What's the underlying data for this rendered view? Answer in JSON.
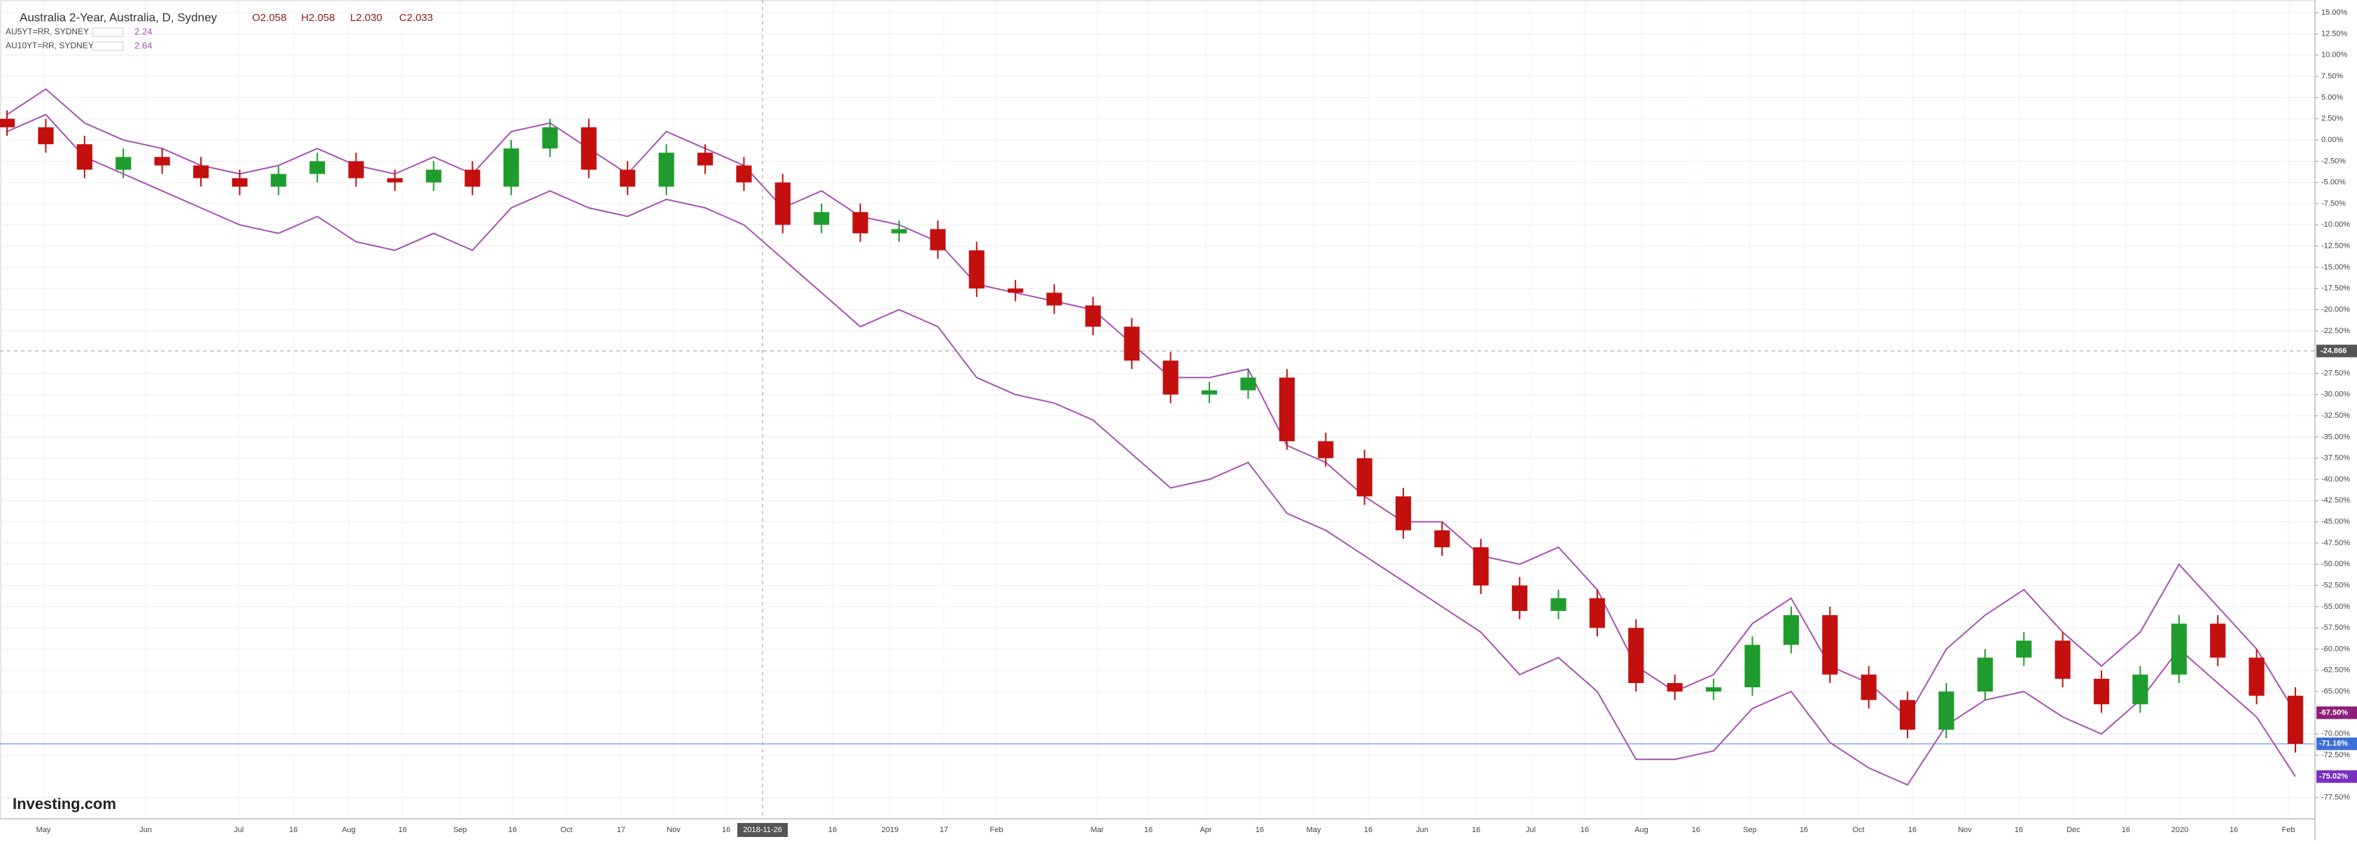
{
  "chart_data": {
    "type": "candlestick",
    "title": "Australia 2-Year, Australia, D, Sydney",
    "ohlc_readout": [
      "O2.058",
      "H2.058",
      "L2.030",
      "C2.033"
    ],
    "open": [
      2.5,
      1.5,
      -0.5,
      -3.5,
      -2.0,
      -3.0,
      -4.5,
      -5.5,
      -4.0,
      -2.5,
      -4.5,
      -5.0,
      -3.5,
      -5.5,
      -1.0,
      1.5,
      -3.5,
      -5.5,
      -1.5,
      -3.0,
      -5.0,
      -10.0,
      -8.5,
      -11.0,
      -10.5,
      -13.0,
      -17.5,
      -18.0,
      -19.5,
      -22.0,
      -26.0,
      -30.0,
      -29.5,
      -28.0,
      -35.5,
      -37.5,
      -42.0,
      -46.0,
      -48.0,
      -52.5,
      -55.5,
      -54.0,
      -57.5,
      -64.0,
      -65.0,
      -64.5,
      -59.5,
      -56.0,
      -63.0,
      -66.0,
      -69.5,
      -65.0,
      -61.0,
      -59.0,
      -63.5,
      -66.5,
      -63.0,
      -57.0,
      -61.0,
      -65.5
    ],
    "high": [
      3.5,
      2.5,
      0.5,
      -1.0,
      -1.0,
      -2.0,
      -3.5,
      -3.0,
      -1.5,
      -1.5,
      -3.5,
      -2.5,
      -2.5,
      0.0,
      2.5,
      2.5,
      -2.5,
      -0.5,
      -0.5,
      -2.0,
      -4.0,
      -7.5,
      -7.5,
      -9.5,
      -9.5,
      -12.0,
      -16.5,
      -17.0,
      -18.5,
      -21.0,
      -25.0,
      -28.5,
      -27.0,
      -27.0,
      -34.5,
      -36.5,
      -41.0,
      -45.0,
      -47.0,
      -51.5,
      -53.0,
      -53.0,
      -56.5,
      -63.0,
      -63.5,
      -58.5,
      -55.0,
      -55.0,
      -62.0,
      -65.0,
      -64.0,
      -60.0,
      -58.0,
      -58.0,
      -62.5,
      -62.0,
      -56.0,
      -56.0,
      -60.0,
      -64.5
    ],
    "low": [
      0.5,
      -1.5,
      -4.5,
      -4.5,
      -4.0,
      -5.5,
      -6.5,
      -6.5,
      -5.0,
      -5.5,
      -6.0,
      -6.0,
      -6.5,
      -6.5,
      -2.0,
      -4.5,
      -6.5,
      -6.5,
      -4.0,
      -6.0,
      -11.0,
      -11.0,
      -12.0,
      -12.0,
      -14.0,
      -18.5,
      -19.0,
      -20.5,
      -23.0,
      -27.0,
      -31.0,
      -31.0,
      -30.5,
      -36.5,
      -38.5,
      -43.0,
      -47.0,
      -49.0,
      -53.5,
      -56.5,
      -56.5,
      -58.5,
      -65.0,
      -66.0,
      -66.0,
      -65.5,
      -60.5,
      -64.0,
      -67.0,
      -70.5,
      -70.5,
      -66.0,
      -62.0,
      -64.5,
      -67.5,
      -67.5,
      -64.0,
      -62.0,
      -66.5,
      -72.2
    ],
    "close": [
      1.5,
      -0.5,
      -3.5,
      -2.0,
      -3.0,
      -4.5,
      -5.5,
      -4.0,
      -2.5,
      -4.5,
      -5.0,
      -3.5,
      -5.5,
      -1.0,
      1.5,
      -3.5,
      -5.5,
      -1.5,
      -3.0,
      -5.0,
      -10.0,
      -8.5,
      -11.0,
      -10.5,
      -13.0,
      -17.5,
      -18.0,
      -19.5,
      -22.0,
      -26.0,
      -30.0,
      -29.5,
      -28.0,
      -35.5,
      -37.5,
      -42.0,
      -46.0,
      -48.0,
      -52.5,
      -55.5,
      -54.0,
      -57.5,
      -64.0,
      -65.0,
      -64.5,
      -59.5,
      -56.0,
      -63.0,
      -66.0,
      -69.5,
      -65.0,
      -61.0,
      -59.0,
      -63.5,
      -66.5,
      -63.0,
      -57.0,
      -61.0,
      -65.5,
      -71.16
    ],
    "up_color": "#1f9c2e",
    "down_color": "#c40f0f",
    "series": [
      {
        "name": "AU5YT=RR, SYDNEY",
        "legend_value": "2.24",
        "color": "#a653b0",
        "values": [
          1,
          3,
          -2,
          -4,
          -6,
          -8,
          -10,
          -11,
          -9,
          -12,
          -13,
          -11,
          -13,
          -8,
          -6,
          -8,
          -9,
          -7,
          -8,
          -10,
          -14,
          -18,
          -22,
          -20,
          -22,
          -28,
          -30,
          -31,
          -33,
          -37,
          -41,
          -40,
          -38,
          -44,
          -46,
          -49,
          -52,
          -55,
          -58,
          -63,
          -61,
          -65,
          -73,
          -73,
          -72,
          -67,
          -65,
          -71,
          -74,
          -76,
          -69,
          -66,
          -65,
          -68,
          -70,
          -66,
          -60,
          -64,
          -68,
          -75.02
        ]
      },
      {
        "name": "AU10YT=RR, SYDNEY",
        "legend_value": "2.64",
        "color": "#a653b0",
        "values": [
          3,
          6,
          2,
          0,
          -1,
          -3,
          -4,
          -3,
          -1,
          -3,
          -4,
          -2,
          -4,
          1,
          2,
          -1,
          -4,
          1,
          -1,
          -3,
          -8,
          -6,
          -9,
          -10,
          -12,
          -17,
          -18,
          -19,
          -20,
          -24,
          -28,
          -28,
          -27,
          -36,
          -38,
          -42,
          -45,
          -45,
          -49,
          -50,
          -48,
          -53,
          -62,
          -65,
          -63,
          -57,
          -54,
          -62,
          -64,
          -68,
          -60,
          -56,
          -53,
          -58,
          -62,
          -58,
          -50,
          -55,
          -60,
          -67.5
        ]
      }
    ],
    "ylim": [
      -80,
      16.5
    ],
    "yticks": [
      {
        "value": 15,
        "label": "15.00%"
      },
      {
        "value": 12.5,
        "label": "12.50%"
      },
      {
        "value": 10,
        "label": "10.00%"
      },
      {
        "value": 7.5,
        "label": "7.50%"
      },
      {
        "value": 5,
        "label": "5.00%"
      },
      {
        "value": 2.5,
        "label": "2.50%"
      },
      {
        "value": 0,
        "label": "0.00%"
      },
      {
        "value": -2.5,
        "label": "-2.50%"
      },
      {
        "value": -5,
        "label": "-5.00%"
      },
      {
        "value": -7.5,
        "label": "-7.50%"
      },
      {
        "value": -10,
        "label": "-10.00%"
      },
      {
        "value": -12.5,
        "label": "-12.50%"
      },
      {
        "value": -15,
        "label": "-15.00%"
      },
      {
        "value": -17.5,
        "label": "-17.50%"
      },
      {
        "value": -20,
        "label": "-20.00%"
      },
      {
        "value": -22.5,
        "label": "-22.50%"
      },
      {
        "value": -27.5,
        "label": "-27.50%"
      },
      {
        "value": -30,
        "label": "-30.00%"
      },
      {
        "value": -32.5,
        "label": "-32.50%"
      },
      {
        "value": -35,
        "label": "-35.00%"
      },
      {
        "value": -37.5,
        "label": "-37.50%"
      },
      {
        "value": -40,
        "label": "-40.00%"
      },
      {
        "value": -42.5,
        "label": "-42.50%"
      },
      {
        "value": -45,
        "label": "-45.00%"
      },
      {
        "value": -47.5,
        "label": "-47.50%"
      },
      {
        "value": -50,
        "label": "-50.00%"
      },
      {
        "value": -52.5,
        "label": "-52.50%"
      },
      {
        "value": -55,
        "label": "-55.00%"
      },
      {
        "value": -57.5,
        "label": "-57.50%"
      },
      {
        "value": -60,
        "label": "-60.00%"
      },
      {
        "value": -62.5,
        "label": "-62.50%"
      },
      {
        "value": -65,
        "label": "-65.00%"
      },
      {
        "value": -70,
        "label": "-70.00%"
      },
      {
        "value": -72.5,
        "label": "-72.50%"
      },
      {
        "value": -77.5,
        "label": "-77.50%"
      }
    ],
    "xtick_labels": [
      "May",
      "Jun",
      "Jul",
      "16",
      "Aug",
      "16",
      "Sep",
      "16",
      "Oct",
      "17",
      "Nov",
      "16",
      "16",
      "2019",
      "17",
      "Feb",
      "Mar",
      "16",
      "Apr",
      "16",
      "May",
      "16",
      "Jun",
      "16",
      "Jul",
      "16",
      "Aug",
      "16",
      "Sep",
      "16",
      "Oct",
      "16",
      "Nov",
      "16",
      "Dec",
      "16",
      "2020",
      "16",
      "Feb"
    ],
    "crosshair_x_label": "2018-11-26",
    "crosshair_y": -24.866,
    "last_value_markers": [
      {
        "value": -67.5,
        "label": "-67.50%",
        "color": "#8e1f7a"
      },
      {
        "value": -71.16,
        "label": "-71.16%",
        "color": "#3d6fd6"
      },
      {
        "value": -75.02,
        "label": "-75.02%",
        "color": "#7a2fc0"
      }
    ],
    "grid": true,
    "logo": "Investing.com"
  }
}
